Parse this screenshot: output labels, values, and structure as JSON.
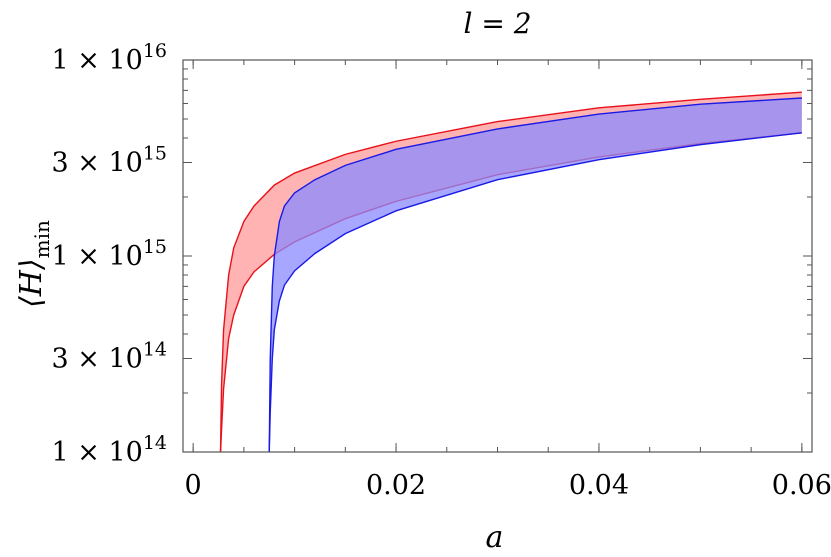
{
  "chart_data": {
    "type": "area",
    "title": "l = 2",
    "xlabel": "a",
    "ylabel": "⟨H⟩min",
    "xlim": [
      -0.001,
      0.061
    ],
    "ylim": [
      100000000000000.0,
      1e+16
    ],
    "y_scale": "log",
    "grid": false,
    "x_ticks": [
      {
        "value": 0,
        "label": "0"
      },
      {
        "value": 0.02,
        "label": "0.02"
      },
      {
        "value": 0.04,
        "label": "0.04"
      },
      {
        "value": 0.06,
        "label": "0.06"
      }
    ],
    "y_ticks": [
      {
        "value": 100000000000000.0,
        "mant": "1 × 10",
        "exp": "14"
      },
      {
        "value": 300000000000000.0,
        "mant": "3 × 10",
        "exp": "14"
      },
      {
        "value": 1000000000000000.0,
        "mant": "1 × 10",
        "exp": "15"
      },
      {
        "value": 3000000000000000.0,
        "mant": "3 × 10",
        "exp": "15"
      },
      {
        "value": 1e+16,
        "mant": "1 × 10",
        "exp": "16"
      }
    ],
    "series": [
      {
        "color": "#e8111b",
        "fill": "#ff9a9a",
        "upper": {
          "x": [
            0.0027,
            0.0028,
            0.003,
            0.0035,
            0.004,
            0.005,
            0.006,
            0.008,
            0.01,
            0.015,
            0.02,
            0.03,
            0.04,
            0.05,
            0.06
          ],
          "y": [
            100000000000000.0,
            220000000000000.0,
            420000000000000.0,
            800000000000000.0,
            1100000000000000.0,
            1500000000000000.0,
            1800000000000000.0,
            2300000000000000.0,
            2650000000000000.0,
            3300000000000000.0,
            3850000000000000.0,
            4850000000000000.0,
            5700000000000000.0,
            6300000000000000.0,
            6850000000000000.0
          ]
        },
        "lower": {
          "x": [
            0.0027,
            0.0028,
            0.003,
            0.0035,
            0.004,
            0.005,
            0.006,
            0.008,
            0.01,
            0.015,
            0.02,
            0.03,
            0.04,
            0.05,
            0.06
          ],
          "y": [
            100000000000000.0,
            130000000000000.0,
            210000000000000.0,
            380000000000000.0,
            500000000000000.0,
            700000000000000.0,
            830000000000000.0,
            1020000000000000.0,
            1180000000000000.0,
            1550000000000000.0,
            1900000000000000.0,
            2600000000000000.0,
            3200000000000000.0,
            3750000000000000.0,
            4250000000000000.0
          ]
        }
      },
      {
        "color": "#1a1ae6",
        "fill": "#8a8aff",
        "upper": {
          "x": [
            0.0075,
            0.0076,
            0.0078,
            0.008,
            0.0085,
            0.009,
            0.01,
            0.012,
            0.015,
            0.02,
            0.03,
            0.04,
            0.05,
            0.06
          ],
          "y": [
            100000000000000.0,
            300000000000000.0,
            700000000000000.0,
            1000000000000000.0,
            1500000000000000.0,
            1800000000000000.0,
            2100000000000000.0,
            2450000000000000.0,
            2900000000000000.0,
            3500000000000000.0,
            4450000000000000.0,
            5300000000000000.0,
            5950000000000000.0,
            6400000000000000.0
          ]
        },
        "lower": {
          "x": [
            0.0075,
            0.0076,
            0.0078,
            0.008,
            0.0085,
            0.009,
            0.01,
            0.012,
            0.015,
            0.02,
            0.03,
            0.04,
            0.05,
            0.06
          ],
          "y": [
            100000000000000.0,
            160000000000000.0,
            300000000000000.0,
            420000000000000.0,
            590000000000000.0,
            710000000000000.0,
            840000000000000.0,
            1030000000000000.0,
            1300000000000000.0,
            1700000000000000.0,
            2450000000000000.0,
            3100000000000000.0,
            3700000000000000.0,
            4250000000000000.0
          ]
        }
      }
    ]
  }
}
